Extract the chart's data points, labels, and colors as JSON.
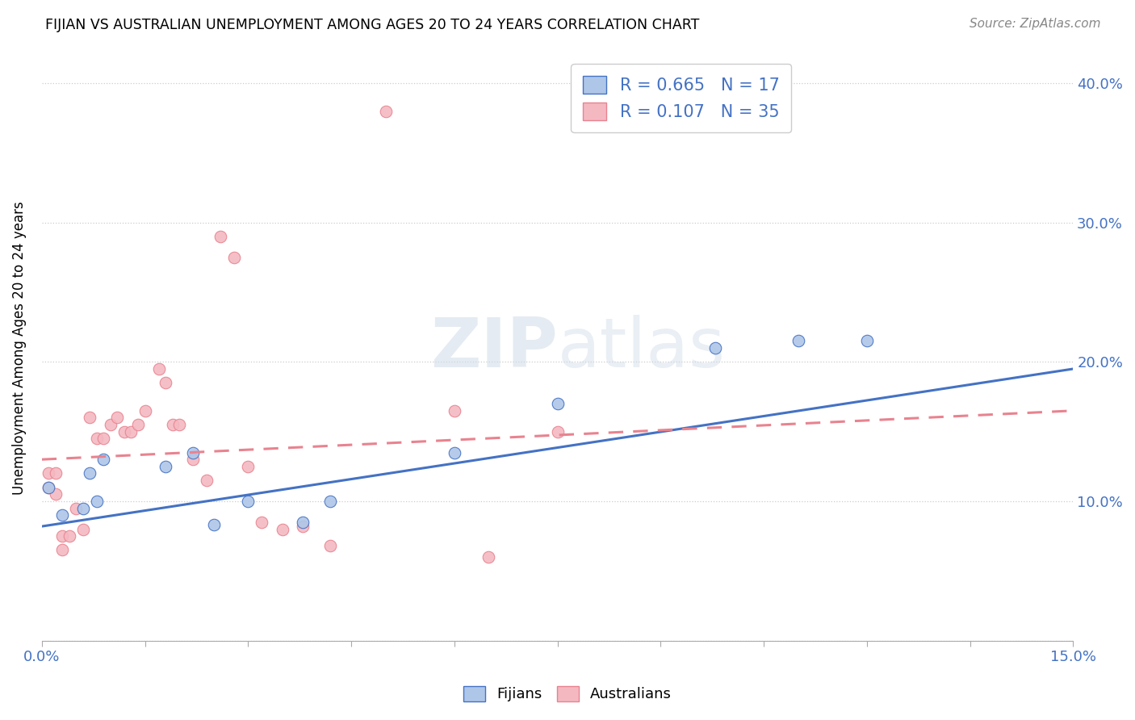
{
  "title": "FIJIAN VS AUSTRALIAN UNEMPLOYMENT AMONG AGES 20 TO 24 YEARS CORRELATION CHART",
  "source": "Source: ZipAtlas.com",
  "ylabel": "Unemployment Among Ages 20 to 24 years",
  "xlim": [
    0.0,
    0.15
  ],
  "ylim": [
    0.0,
    0.42
  ],
  "xticks": [
    0.0,
    0.015,
    0.03,
    0.045,
    0.06,
    0.075,
    0.09,
    0.105,
    0.12,
    0.135,
    0.15
  ],
  "xtick_labels": [
    "0.0%",
    "",
    "",
    "",
    "",
    "",
    "",
    "",
    "",
    "",
    "15.0%"
  ],
  "ytick_positions": [
    0.0,
    0.1,
    0.2,
    0.3,
    0.4
  ],
  "ytick_labels": [
    "",
    "10.0%",
    "20.0%",
    "30.0%",
    "40.0%"
  ],
  "fijian_color": "#aec6e8",
  "australian_color": "#f4b8c1",
  "fijian_line_color": "#4472c4",
  "australian_line_color": "#e8838f",
  "watermark": "ZIPatlas",
  "fijian_R": 0.665,
  "fijian_N": 17,
  "australian_R": 0.107,
  "australian_N": 35,
  "fijian_line_x": [
    0.0,
    0.15
  ],
  "fijian_line_y": [
    0.082,
    0.195
  ],
  "australian_line_x": [
    0.0,
    0.15
  ],
  "australian_line_y": [
    0.13,
    0.165
  ],
  "fijian_x": [
    0.001,
    0.003,
    0.006,
    0.007,
    0.008,
    0.009,
    0.018,
    0.022,
    0.025,
    0.03,
    0.038,
    0.042,
    0.06,
    0.075,
    0.098,
    0.11,
    0.12
  ],
  "fijian_y": [
    0.11,
    0.09,
    0.095,
    0.12,
    0.1,
    0.13,
    0.125,
    0.135,
    0.083,
    0.1,
    0.085,
    0.1,
    0.135,
    0.17,
    0.21,
    0.215,
    0.215
  ],
  "australian_x": [
    0.001,
    0.001,
    0.002,
    0.002,
    0.003,
    0.003,
    0.004,
    0.005,
    0.006,
    0.007,
    0.008,
    0.009,
    0.01,
    0.011,
    0.012,
    0.013,
    0.014,
    0.015,
    0.017,
    0.018,
    0.019,
    0.02,
    0.022,
    0.024,
    0.026,
    0.028,
    0.03,
    0.032,
    0.035,
    0.038,
    0.042,
    0.05,
    0.06,
    0.065,
    0.075
  ],
  "australian_y": [
    0.11,
    0.12,
    0.105,
    0.12,
    0.065,
    0.075,
    0.075,
    0.095,
    0.08,
    0.16,
    0.145,
    0.145,
    0.155,
    0.16,
    0.15,
    0.15,
    0.155,
    0.165,
    0.195,
    0.185,
    0.155,
    0.155,
    0.13,
    0.115,
    0.29,
    0.275,
    0.125,
    0.085,
    0.08,
    0.082,
    0.068,
    0.38,
    0.165,
    0.06,
    0.15
  ]
}
